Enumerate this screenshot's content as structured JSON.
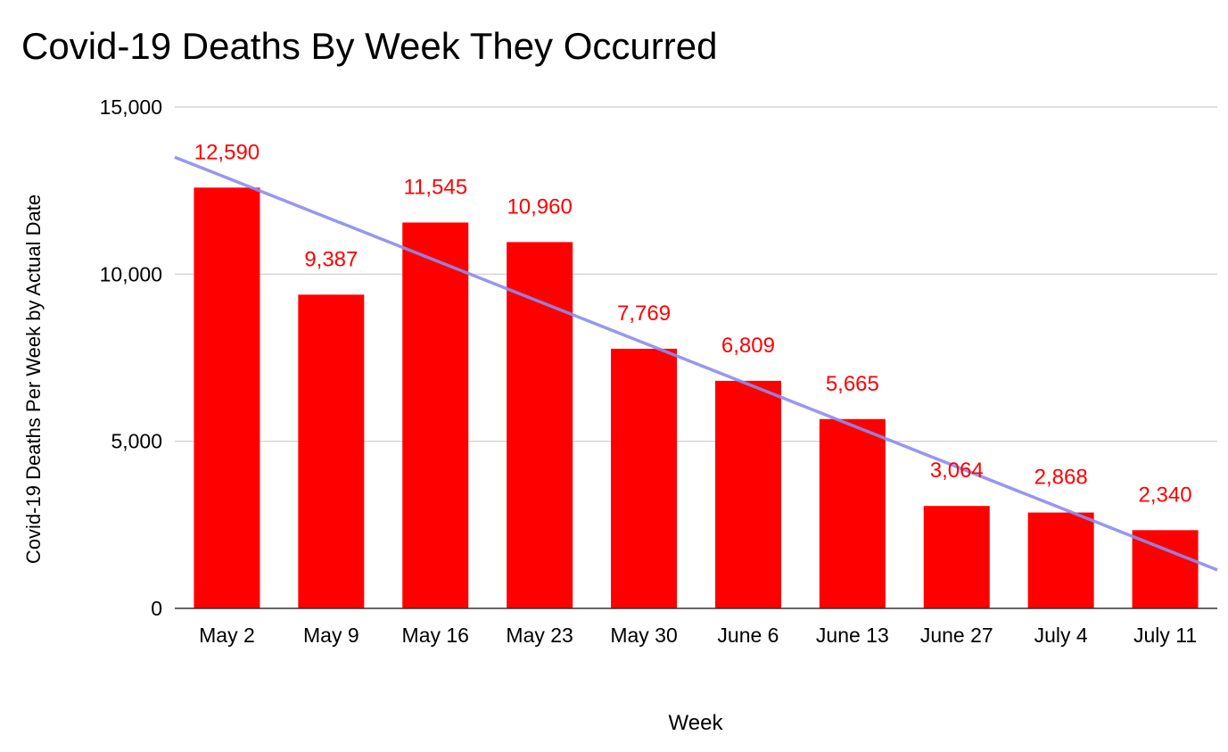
{
  "chart_data": {
    "type": "bar",
    "title": "Covid-19 Deaths By Week They Occurred",
    "xlabel": "Week",
    "ylabel": "Covid-19 Deaths Per Week by Actual Date",
    "categories": [
      "May 2",
      "May 9",
      "May 16",
      "May 23",
      "May 30",
      "June 6",
      "June 13",
      "June 27",
      "July 4",
      "July 11"
    ],
    "values": [
      12590,
      9387,
      11545,
      10960,
      7769,
      6809,
      5665,
      3064,
      2868,
      2340
    ],
    "data_labels": [
      "12,590",
      "9,387",
      "11,545",
      "10,960",
      "7,769",
      "6,809",
      "5,665",
      "3,064",
      "2,868",
      "2,340"
    ],
    "yticks": [
      0,
      5000,
      10000,
      15000
    ],
    "ytick_labels": [
      "0",
      "5,000",
      "10,000",
      "15,000"
    ],
    "ylim": [
      0,
      15000
    ],
    "grid": true,
    "legend": "none",
    "trendline": {
      "type": "linear",
      "start_value": 13500,
      "end_value": 1150
    },
    "colors": {
      "bar": "#ff0000",
      "data_label": "#ff0000",
      "trendline": "#8c8cf0",
      "grid": "#cccccc",
      "axis": "#333333",
      "text": "#000000"
    }
  }
}
